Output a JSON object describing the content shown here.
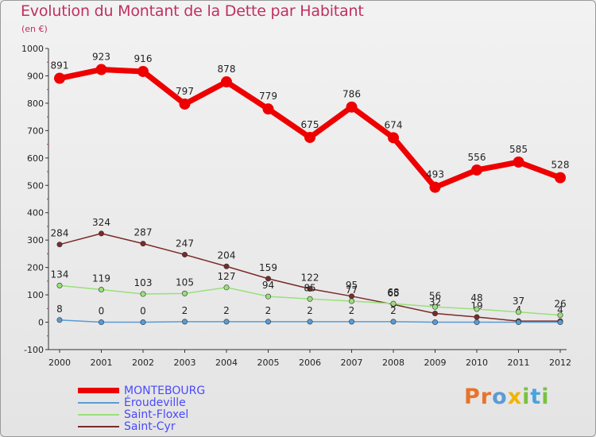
{
  "chart_data": {
    "type": "line",
    "title": "Evolution du Montant de la Dette par Habitant",
    "subtitle": "(en €)",
    "xlabel": "",
    "ylabel": "",
    "x": [
      "2000",
      "2001",
      "2002",
      "2003",
      "2004",
      "2005",
      "2006",
      "2007",
      "2008",
      "2009",
      "2010",
      "2011",
      "2012"
    ],
    "ylim": [
      -100,
      1000
    ],
    "yticks": [
      "-100",
      "0",
      "100",
      "200",
      "300",
      "400",
      "500",
      "600",
      "700",
      "800",
      "900",
      "1000"
    ],
    "grid": false,
    "legend_position": "bottom-left",
    "series": [
      {
        "name": "MONTEBOURG",
        "color": "#ee0000",
        "values": [
          891,
          923,
          916,
          797,
          878,
          779,
          675,
          786,
          674,
          493,
          556,
          585,
          528
        ],
        "labels": [
          "891",
          "923",
          "916",
          "797",
          "878",
          "779",
          "675",
          "786",
          "674",
          "493",
          "556",
          "585",
          "528"
        ]
      },
      {
        "name": "Éroudeville",
        "color": "#5b9bd5",
        "values": [
          8,
          0,
          0,
          2,
          2,
          2,
          2,
          2,
          2,
          0,
          0,
          0,
          0
        ],
        "labels": [
          "8",
          "0",
          "0",
          "2",
          "2",
          "2",
          "2",
          "2",
          "2",
          "",
          "",
          "",
          ""
        ]
      },
      {
        "name": "Saint-Floxel",
        "color": "#99e07a",
        "values": [
          134,
          119,
          103,
          105,
          127,
          94,
          85,
          77,
          68,
          56,
          48,
          37,
          26
        ],
        "labels": [
          "134",
          "119",
          "103",
          "105",
          "127",
          "94",
          "85",
          "77",
          "68",
          "56",
          "48",
          "37",
          "26"
        ]
      },
      {
        "name": "Saint-Cyr",
        "color": "#7a2a2a",
        "values": [
          284,
          324,
          287,
          247,
          204,
          159,
          122,
          95,
          65,
          32,
          19,
          4,
          4
        ],
        "labels": [
          "284",
          "324",
          "287",
          "247",
          "204",
          "159",
          "122",
          "95",
          "65",
          "32",
          "19",
          "4",
          "4"
        ]
      }
    ]
  },
  "brand": {
    "text": "Proxiti",
    "letters": [
      {
        "ch": "P",
        "color": "#e8732a"
      },
      {
        "ch": "r",
        "color": "#e8732a"
      },
      {
        "ch": "o",
        "color": "#5b9bd5"
      },
      {
        "ch": "x",
        "color": "#f0b400"
      },
      {
        "ch": "i",
        "color": "#7ac143"
      },
      {
        "ch": "t",
        "color": "#4aa3df"
      },
      {
        "ch": "i",
        "color": "#7ac143"
      }
    ]
  }
}
